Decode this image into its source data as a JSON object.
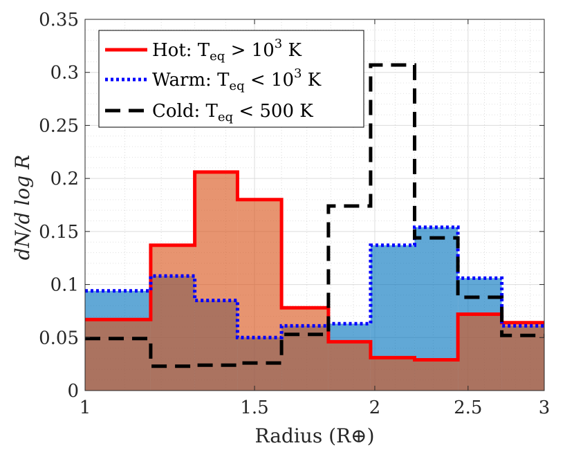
{
  "chart_data": {
    "type": "histogram-step",
    "xlabel": "Radius (R⊕)",
    "ylabel": "dN/d log R",
    "xscale": "log",
    "xlim": [
      1,
      3
    ],
    "ylim": [
      0,
      0.35
    ],
    "grid": true,
    "minor_grid": true,
    "x_ticks": [
      {
        "value": 1,
        "label": "1"
      },
      {
        "value": 1.5,
        "label": "1.5"
      },
      {
        "value": 2,
        "label": "2"
      },
      {
        "value": 2.5,
        "label": "2.5"
      },
      {
        "value": 3,
        "label": "3"
      }
    ],
    "y_ticks": [
      {
        "value": 0,
        "label": "0"
      },
      {
        "value": 0.05,
        "label": "0.05"
      },
      {
        "value": 0.1,
        "label": "0.1"
      },
      {
        "value": 0.15,
        "label": "0.15"
      },
      {
        "value": 0.2,
        "label": "0.2"
      },
      {
        "value": 0.25,
        "label": "0.25"
      },
      {
        "value": 0.3,
        "label": "0.3"
      },
      {
        "value": 0.35,
        "label": "0.35"
      }
    ],
    "bin_edges": [
      1.0,
      1.17,
      1.3,
      1.44,
      1.6,
      1.79,
      1.98,
      2.2,
      2.44,
      2.71,
      3.0
    ],
    "series": [
      {
        "name": "Hot",
        "legend_label": "Hot:   T",
        "legend_sub": "eq",
        "legend_rest": " > 10",
        "legend_sup": "3",
        "legend_unit": " K",
        "values": [
          0.067,
          0.137,
          0.206,
          0.18,
          0.078,
          0.046,
          0.031,
          0.029,
          0.072,
          0.064
        ],
        "line_color": "#ff0000",
        "fill_color": "#d95319",
        "style": "solid"
      },
      {
        "name": "Warm",
        "legend_label": "Warm: T",
        "legend_sub": "eq",
        "legend_rest": " < 10",
        "legend_sup": "3",
        "legend_unit": " K",
        "values": [
          0.094,
          0.108,
          0.085,
          0.05,
          0.061,
          0.063,
          0.137,
          0.154,
          0.106,
          0.061
        ],
        "line_color": "#0000ff",
        "fill_color": "#0072bd",
        "style": "dotted"
      },
      {
        "name": "Cold",
        "legend_label": "Cold: T",
        "legend_sub": "eq",
        "legend_rest": " < 500 K",
        "legend_sup": "",
        "legend_unit": "",
        "values": [
          0.049,
          0.023,
          0.024,
          0.026,
          0.053,
          0.174,
          0.307,
          0.144,
          0.088,
          0.052
        ],
        "line_color": "#000000",
        "fill_color": "none",
        "style": "dashed"
      }
    ],
    "legend_position": "top-left"
  }
}
